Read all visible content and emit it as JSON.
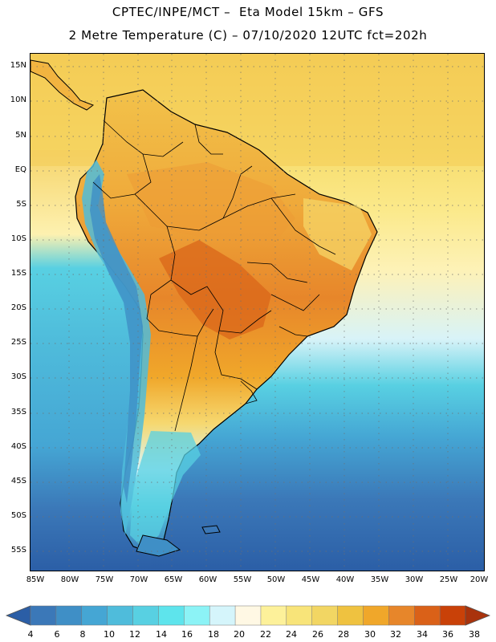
{
  "header": {
    "line1": "CPTEC/INPE/MCT –  Eta Model 15km – GFS",
    "line2": "2 Metre Temperature (C) – 07/10/2020 12UTC fct=202h"
  },
  "map": {
    "lat_labels": [
      "15N",
      "10N",
      "5N",
      "EQ",
      "5S",
      "10S",
      "15S",
      "20S",
      "25S",
      "30S",
      "35S",
      "40S",
      "45S",
      "50S",
      "55S"
    ],
    "lon_labels": [
      "85W",
      "80W",
      "75W",
      "70W",
      "65W",
      "60W",
      "55W",
      "50W",
      "45W",
      "40W",
      "35W",
      "30W",
      "25W",
      "20W"
    ]
  },
  "colorbar": {
    "labels": [
      "4",
      "6",
      "8",
      "10",
      "12",
      "14",
      "16",
      "18",
      "20",
      "22",
      "24",
      "26",
      "28",
      "30",
      "32",
      "34",
      "36",
      "38"
    ],
    "colors": [
      "#2b5ea6",
      "#3b78b8",
      "#3f8fc6",
      "#45a6d4",
      "#4fbcdb",
      "#58d0e2",
      "#5ee4ec",
      "#8cf3f6",
      "#d5f5fb",
      "#fff8e4",
      "#fdf19a",
      "#f8e479",
      "#f2d663",
      "#efc240",
      "#f0a72a",
      "#e7862a",
      "#da6118",
      "#c94108",
      "#a9330c"
    ]
  }
}
